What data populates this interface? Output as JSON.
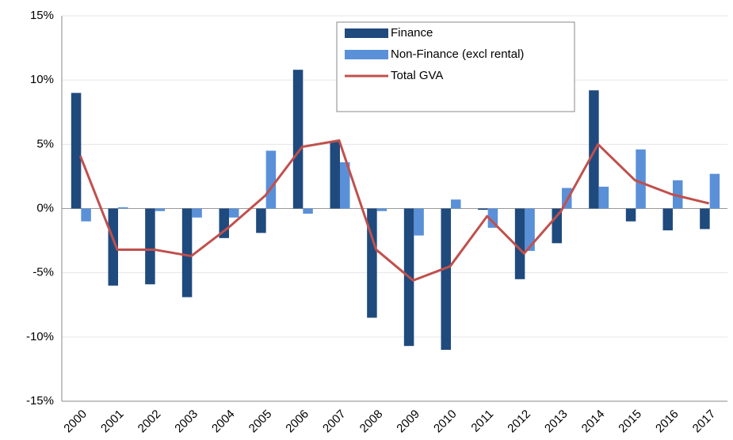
{
  "chart_data": {
    "type": "bar-line",
    "categories": [
      "2000",
      "2001",
      "2002",
      "2003",
      "2004",
      "2005",
      "2006",
      "2007",
      "2008",
      "2009",
      "2010",
      "2011",
      "2012",
      "2013",
      "2014",
      "2015",
      "2016",
      "2017"
    ],
    "series": [
      {
        "name": "Finance",
        "type": "bar",
        "color": "#1f4a7d",
        "values": [
          9.0,
          -6.0,
          -5.9,
          -6.9,
          -2.3,
          -1.9,
          10.8,
          5.2,
          -8.5,
          -10.7,
          -11.0,
          -0.1,
          -5.5,
          -2.7,
          9.2,
          -1.0,
          -1.7,
          -1.6
        ]
      },
      {
        "name": "Non-Finance (excl rental)",
        "type": "bar",
        "color": "#5a90d8",
        "values": [
          -1.0,
          0.1,
          -0.2,
          -0.7,
          -0.7,
          4.5,
          -0.4,
          3.6,
          -0.2,
          -2.1,
          0.7,
          -1.5,
          -3.3,
          1.6,
          1.7,
          4.6,
          2.2,
          2.7
        ]
      },
      {
        "name": "Total GVA",
        "type": "line",
        "color": "#c0504d",
        "values": [
          4.1,
          -3.2,
          -3.2,
          -3.7,
          -1.5,
          1.0,
          4.8,
          5.3,
          -3.2,
          -5.6,
          -4.5,
          -0.6,
          -3.5,
          -0.2,
          5.0,
          2.2,
          1.1,
          0.4
        ]
      }
    ],
    "ylim": [
      -15,
      15
    ],
    "yticks": [
      {
        "value": -15,
        "label": "-15%"
      },
      {
        "value": -10,
        "label": "-10%"
      },
      {
        "value": -5,
        "label": "-5%"
      },
      {
        "value": 0,
        "label": "0%"
      },
      {
        "value": 5,
        "label": "5%"
      },
      {
        "value": 10,
        "label": "10%"
      },
      {
        "value": 15,
        "label": "15%"
      }
    ],
    "grid": true
  }
}
